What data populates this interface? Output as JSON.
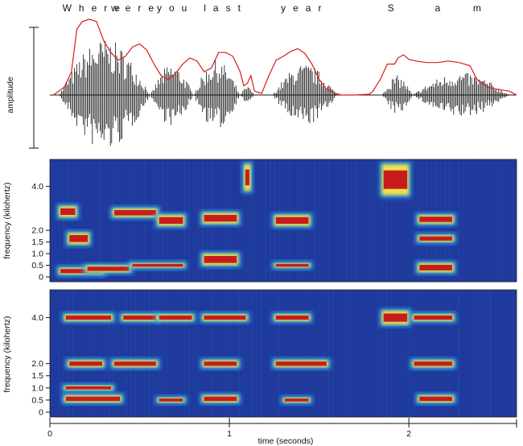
{
  "chart_data": [
    {
      "type": "line",
      "panel": "waveform",
      "ylabel": "amplitude",
      "words": [
        {
          "text": "Where",
          "x": 0.25
        },
        {
          "text": "were",
          "x": 0.48
        },
        {
          "text": "you",
          "x": 0.7
        },
        {
          "text": "last",
          "x": 0.98
        },
        {
          "text": "year",
          "x": 1.42
        },
        {
          "text": "S",
          "x": 1.92
        },
        {
          "text": "a",
          "x": 2.18
        },
        {
          "text": "m",
          "x": 2.4
        }
      ],
      "series": [
        {
          "name": "",
          "color": "#e01818",
          "x": [
            0.02,
            0.08,
            0.12,
            0.15,
            0.18,
            0.22,
            0.26,
            0.3,
            0.34,
            0.38,
            0.42,
            0.46,
            0.5,
            0.54,
            0.58,
            0.62,
            0.66,
            0.7,
            0.74,
            0.78,
            0.82,
            0.86,
            0.9,
            0.94,
            0.98,
            1.02,
            1.06,
            1.08,
            1.1,
            1.12,
            1.14,
            1.18,
            1.22,
            1.26,
            1.3,
            1.34,
            1.38,
            1.42,
            1.46,
            1.5,
            1.54,
            1.58,
            1.62,
            1.7,
            1.78,
            1.8,
            1.84,
            1.88,
            1.92,
            1.94,
            1.97,
            2.0,
            2.04,
            2.1,
            2.16,
            2.22,
            2.28,
            2.34,
            2.38,
            2.44,
            2.5,
            2.56,
            2.6
          ],
          "y": [
            0.0,
            0.1,
            0.3,
            0.85,
            0.95,
            0.98,
            0.95,
            0.7,
            0.55,
            0.45,
            0.5,
            0.62,
            0.66,
            0.58,
            0.4,
            0.25,
            0.2,
            0.28,
            0.4,
            0.48,
            0.44,
            0.3,
            0.35,
            0.55,
            0.55,
            0.5,
            0.3,
            0.12,
            0.15,
            0.25,
            0.05,
            0.02,
            0.25,
            0.45,
            0.5,
            0.56,
            0.6,
            0.54,
            0.4,
            0.2,
            0.08,
            0.03,
            0.0,
            0.0,
            0.01,
            0.05,
            0.2,
            0.4,
            0.4,
            0.48,
            0.52,
            0.46,
            0.44,
            0.42,
            0.42,
            0.44,
            0.42,
            0.38,
            0.2,
            0.1,
            0.07,
            0.05,
            0.0
          ]
        }
      ],
      "xlim": [
        0,
        2.6
      ],
      "ylim": [
        -1,
        1
      ],
      "voiced_segments": [
        [
          0.05,
          0.56
        ],
        [
          0.56,
          0.8
        ],
        [
          0.8,
          1.06
        ],
        [
          1.06,
          1.14
        ],
        [
          1.24,
          1.6
        ],
        [
          1.85,
          2.02
        ],
        [
          2.02,
          2.56
        ]
      ],
      "segment_amplitudes": [
        1.0,
        0.55,
        0.62,
        0.15,
        0.55,
        0.35,
        0.4
      ]
    },
    {
      "type": "heatmap",
      "panel": "spectrogram-upper",
      "ylabel": "frequency (kilohertz)",
      "yticks": [
        "0",
        "0.5",
        "1.0",
        "1.5",
        "2.0",
        "4.0"
      ],
      "ytick_values": [
        0,
        0.5,
        1.0,
        1.5,
        2.0,
        4.0
      ],
      "xlim": [
        0,
        2.6
      ],
      "colormap": [
        "#1f3a9c",
        "#2fa4e7",
        "#f3e14a",
        "#c81c1c"
      ],
      "bands": [
        {
          "x": [
            0.05,
            0.3
          ],
          "f": [
            0.1,
            0.4
          ]
        },
        {
          "x": [
            0.05,
            0.15
          ],
          "f": [
            2.6,
            3.1
          ]
        },
        {
          "x": [
            0.1,
            0.22
          ],
          "f": [
            1.4,
            1.9
          ]
        },
        {
          "x": [
            0.2,
            0.45
          ],
          "f": [
            0.2,
            0.5
          ]
        },
        {
          "x": [
            0.35,
            0.6
          ],
          "f": [
            2.6,
            3.0
          ]
        },
        {
          "x": [
            0.45,
            0.75
          ],
          "f": [
            0.4,
            0.6
          ]
        },
        {
          "x": [
            0.6,
            0.75
          ],
          "f": [
            2.2,
            2.7
          ]
        },
        {
          "x": [
            0.85,
            1.05
          ],
          "f": [
            2.3,
            2.8
          ]
        },
        {
          "x": [
            0.85,
            1.05
          ],
          "f": [
            0.5,
            1.0
          ]
        },
        {
          "x": [
            1.08,
            1.12
          ],
          "f": [
            3.8,
            5.0
          ]
        },
        {
          "x": [
            1.25,
            1.45
          ],
          "f": [
            0.4,
            0.6
          ]
        },
        {
          "x": [
            1.25,
            1.45
          ],
          "f": [
            2.2,
            2.7
          ]
        },
        {
          "x": [
            1.85,
            2.0
          ],
          "f": [
            3.6,
            5.0
          ]
        },
        {
          "x": [
            2.05,
            2.25
          ],
          "f": [
            2.3,
            2.7
          ]
        },
        {
          "x": [
            2.05,
            2.25
          ],
          "f": [
            0.2,
            0.6
          ]
        },
        {
          "x": [
            2.05,
            2.25
          ],
          "f": [
            1.5,
            1.8
          ]
        }
      ]
    },
    {
      "type": "heatmap",
      "panel": "spectrogram-lower",
      "ylabel": "frequency (kilohertz)",
      "xlabel": "time (seconds)",
      "yticks": [
        "0",
        "0.5",
        "1.0",
        "1.5",
        "2.0",
        "4.0"
      ],
      "ytick_values": [
        0,
        0.5,
        1.0,
        1.5,
        2.0,
        4.0
      ],
      "xticks": [
        "0",
        "1",
        "2"
      ],
      "xtick_values": [
        0,
        1,
        2
      ],
      "xlim": [
        0,
        2.6
      ],
      "colormap": [
        "#1f3a9c",
        "#2fa4e7",
        "#f3e14a",
        "#c81c1c"
      ],
      "bands": [
        {
          "x": [
            0.08,
            0.35
          ],
          "f": [
            3.85,
            4.15
          ]
        },
        {
          "x": [
            0.4,
            0.6
          ],
          "f": [
            3.85,
            4.15
          ]
        },
        {
          "x": [
            0.6,
            0.8
          ],
          "f": [
            3.85,
            4.15
          ]
        },
        {
          "x": [
            0.85,
            1.1
          ],
          "f": [
            3.85,
            4.15
          ]
        },
        {
          "x": [
            1.25,
            1.45
          ],
          "f": [
            3.85,
            4.15
          ]
        },
        {
          "x": [
            1.85,
            2.0
          ],
          "f": [
            3.7,
            4.3
          ]
        },
        {
          "x": [
            2.02,
            2.25
          ],
          "f": [
            3.85,
            4.15
          ]
        },
        {
          "x": [
            0.1,
            0.3
          ],
          "f": [
            1.85,
            2.15
          ]
        },
        {
          "x": [
            0.35,
            0.6
          ],
          "f": [
            1.85,
            2.15
          ]
        },
        {
          "x": [
            0.85,
            1.05
          ],
          "f": [
            1.85,
            2.15
          ]
        },
        {
          "x": [
            1.25,
            1.55
          ],
          "f": [
            1.85,
            2.15
          ]
        },
        {
          "x": [
            2.02,
            2.25
          ],
          "f": [
            1.85,
            2.15
          ]
        },
        {
          "x": [
            0.08,
            0.4
          ],
          "f": [
            0.4,
            0.7
          ]
        },
        {
          "x": [
            0.08,
            0.35
          ],
          "f": [
            0.9,
            1.1
          ]
        },
        {
          "x": [
            0.6,
            0.75
          ],
          "f": [
            0.4,
            0.6
          ]
        },
        {
          "x": [
            0.85,
            1.05
          ],
          "f": [
            0.4,
            0.7
          ]
        },
        {
          "x": [
            1.3,
            1.45
          ],
          "f": [
            0.4,
            0.6
          ]
        },
        {
          "x": [
            2.05,
            2.25
          ],
          "f": [
            0.4,
            0.7
          ]
        }
      ]
    }
  ]
}
